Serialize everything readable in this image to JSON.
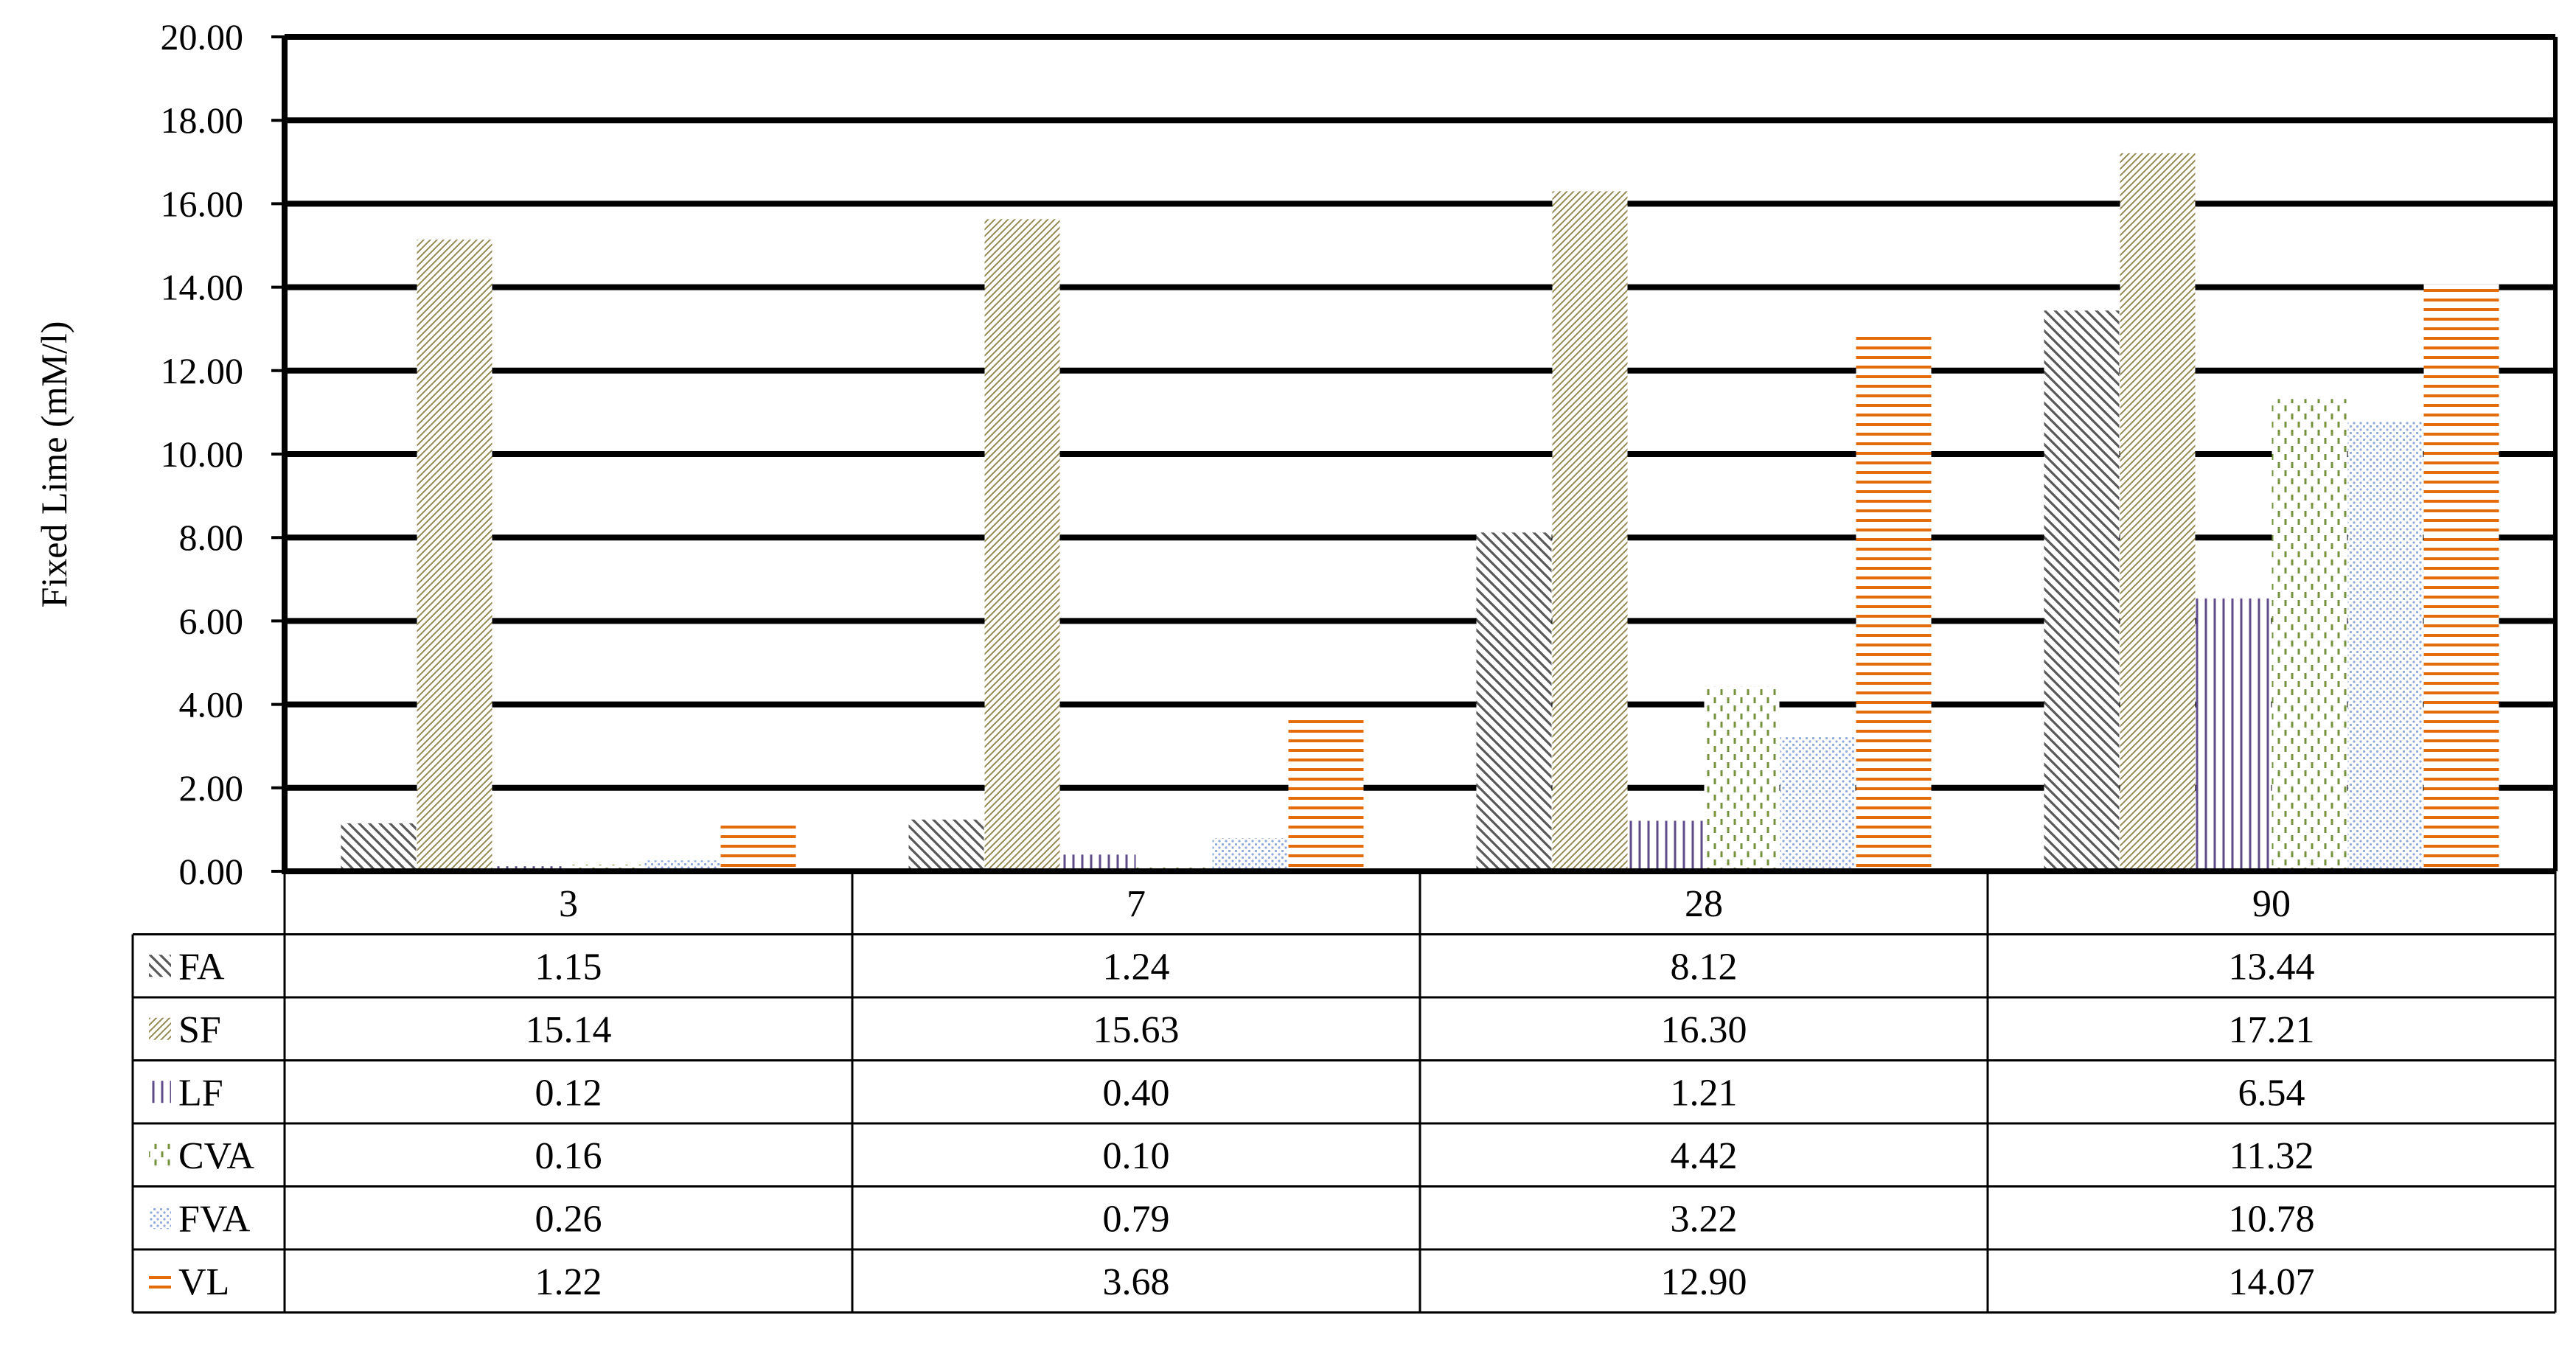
{
  "chart_data": {
    "type": "bar",
    "title": "",
    "xlabel": "",
    "ylabel": "Fixed Lime (mM/l)",
    "ylim": [
      0,
      20
    ],
    "yticks": [
      "0.00",
      "2.00",
      "4.00",
      "6.00",
      "8.00",
      "10.00",
      "12.00",
      "14.00",
      "16.00",
      "18.00",
      "20.00"
    ],
    "grid": true,
    "legend_placement": "data table rows below plot",
    "categories": [
      "3",
      "7",
      "28",
      "90"
    ],
    "series": [
      {
        "name": "FA",
        "color": "#595959",
        "pattern": "diagonal-down",
        "values": [
          1.15,
          1.24,
          8.12,
          13.44
        ],
        "labels": [
          "1.15",
          "1.24",
          "8.12",
          "13.44"
        ]
      },
      {
        "name": "SF",
        "color": "#948a54",
        "pattern": "diagonal-up",
        "values": [
          15.14,
          15.63,
          16.3,
          17.21
        ],
        "labels": [
          "15.14",
          "15.63",
          "16.30",
          "17.21"
        ]
      },
      {
        "name": "LF",
        "color": "#5f4b8b",
        "pattern": "vertical",
        "values": [
          0.12,
          0.4,
          1.21,
          6.54
        ],
        "labels": [
          "0.12",
          "0.40",
          "1.21",
          "6.54"
        ]
      },
      {
        "name": "CVA",
        "color": "#76923c",
        "pattern": "dashed-vertical",
        "values": [
          0.16,
          0.1,
          4.42,
          11.32
        ],
        "labels": [
          "0.16",
          "0.10",
          "4.42",
          "11.32"
        ]
      },
      {
        "name": "FVA",
        "color": "#8ea9db",
        "pattern": "dots",
        "values": [
          0.26,
          0.79,
          3.22,
          10.78
        ],
        "labels": [
          "0.26",
          "0.79",
          "3.22",
          "10.78"
        ]
      },
      {
        "name": "VL",
        "color": "#e46c0a",
        "pattern": "horizontal",
        "values": [
          1.22,
          3.68,
          12.9,
          14.07
        ],
        "labels": [
          "1.22",
          "3.68",
          "12.90",
          "14.07"
        ]
      }
    ]
  }
}
